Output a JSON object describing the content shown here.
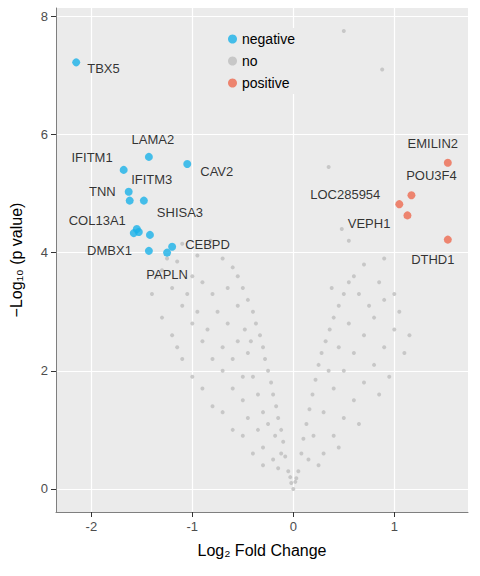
{
  "chart_data": {
    "type": "scatter",
    "xlabel": "Log₂ Fold Change",
    "ylabel": "−Log₁₀ (p value)",
    "xlim": [
      -2.35,
      1.73
    ],
    "ylim": [
      -0.39,
      8.14
    ],
    "xticks": [
      -2,
      -1,
      0,
      1
    ],
    "yticks": [
      0,
      2,
      4,
      6,
      8
    ],
    "grid": true,
    "legend": "top",
    "series": [
      {
        "name": "negative",
        "color": "#1AB2E8",
        "x": [
          -2.15,
          -1.43,
          -1.05,
          -1.68,
          -1.63,
          -1.62,
          -1.48,
          -1.55,
          -1.43,
          -1.2,
          -1.25,
          -1.53,
          -1.42,
          -1.58
        ],
        "y": [
          7.22,
          5.62,
          5.5,
          5.4,
          5.03,
          4.88,
          4.88,
          4.4,
          4.03,
          4.1,
          4.0,
          4.35,
          4.3,
          4.33
        ],
        "labels": [
          "TBX5",
          "LAMA2",
          "CAV2",
          "IFITM1",
          "TNN",
          "IFITM3",
          "SHISA3",
          "COL13A1",
          "DMBX1",
          "CEBPD",
          "PAPLN",
          null,
          null,
          null
        ]
      },
      {
        "name": "no",
        "color": "#BEBEBE",
        "x": [
          0,
          -0.02,
          0.02,
          -0.03,
          0.03,
          -0.05,
          -0.08,
          -0.1,
          -0.12,
          -0.15,
          -0.17,
          -0.2,
          -0.22,
          -0.25,
          -0.28,
          -0.3,
          -0.33,
          -0.37,
          -0.4,
          -0.45,
          -0.5,
          -0.55,
          -0.6,
          -0.7,
          -0.2,
          -0.3,
          -0.35,
          -0.45,
          -0.5,
          -0.6,
          -0.7,
          -0.8,
          -0.9,
          -1.0,
          -1.1,
          -1.2,
          -1.3,
          -1.25,
          -1.15,
          -1.0,
          -0.9,
          -0.8,
          -0.75,
          -0.65,
          -0.55,
          -0.45,
          -0.4,
          -0.35,
          -0.3,
          -0.25,
          -0.18,
          -0.12,
          -0.15,
          -0.4,
          -0.6,
          -0.8,
          -1.0,
          -1.15,
          -1.3,
          -1.4,
          -1.35,
          -1.05,
          -0.95,
          -0.85,
          -0.7,
          -0.6,
          -0.5,
          -1.2,
          -1.1,
          -0.9,
          -0.7,
          -0.5,
          -0.3,
          -0.82,
          -0.95,
          -1.1,
          -0.65,
          -0.55,
          -0.48,
          -0.42,
          0.05,
          0.08,
          0.1,
          0.13,
          0.16,
          0.19,
          0.22,
          0.25,
          0.28,
          0.32,
          0.36,
          0.4,
          0.45,
          0.5,
          0.55,
          0.3,
          0.4,
          0.5,
          0.6,
          0.7,
          0.8,
          0.9,
          1.0,
          1.05,
          1.0,
          0.9,
          0.8,
          0.7,
          0.6,
          0.5,
          0.4,
          0.3,
          0.2,
          0.15,
          0.25,
          0.45,
          0.65,
          0.85,
          0.95,
          1.1,
          1.15,
          0.75,
          0.65,
          0.6,
          0.7,
          0.55,
          0.45,
          0.35,
          0.85,
          0.9,
          0.55,
          0.35,
          0.5,
          0.88,
          0.48,
          0.38
        ],
        "y": [
          0,
          0.1,
          0.12,
          0.2,
          0.18,
          0.3,
          0.55,
          0.8,
          1.0,
          1.2,
          1.4,
          1.6,
          1.8,
          2.0,
          2.2,
          2.4,
          2.6,
          2.8,
          3.0,
          3.2,
          3.4,
          3.6,
          3.75,
          3.9,
          0.5,
          0.7,
          1.0,
          1.2,
          1.5,
          1.7,
          2.0,
          2.2,
          2.5,
          2.8,
          3.1,
          3.4,
          3.7,
          3.9,
          3.85,
          3.6,
          3.5,
          3.3,
          3.0,
          2.8,
          2.5,
          2.3,
          1.9,
          1.6,
          1.3,
          1.1,
          0.9,
          0.6,
          0.35,
          0.6,
          1.0,
          1.4,
          1.9,
          2.4,
          2.9,
          3.3,
          3.6,
          3.3,
          3.0,
          2.7,
          2.4,
          2.2,
          1.9,
          2.6,
          2.2,
          1.7,
          1.3,
          0.9,
          0.4,
          4.2,
          3.95,
          4.15,
          3.4,
          3.1,
          2.7,
          2.5,
          0.3,
          0.6,
          0.85,
          1.1,
          1.35,
          1.6,
          1.85,
          2.1,
          2.3,
          2.5,
          2.7,
          2.9,
          3.1,
          3.3,
          3.5,
          0.6,
          0.9,
          1.2,
          1.5,
          1.8,
          2.1,
          2.4,
          2.7,
          3.0,
          3.3,
          3.2,
          2.9,
          2.6,
          2.3,
          2.0,
          1.7,
          1.3,
          0.9,
          0.5,
          0.4,
          0.7,
          1.1,
          1.6,
          1.9,
          2.3,
          2.6,
          3.1,
          3.3,
          3.6,
          3.8,
          2.8,
          2.4,
          2.0,
          3.5,
          3.9,
          4.2,
          5.45,
          7.75,
          7.1,
          4.4,
          3.4
        ]
      },
      {
        "name": "positive",
        "color": "#EE6A50",
        "x": [
          1.53,
          1.17,
          1.05,
          1.13,
          1.53
        ],
        "y": [
          5.52,
          4.97,
          4.82,
          4.63,
          4.22
        ],
        "labels": [
          "EMILIN2",
          "POU3F4",
          "LOC285954",
          "VEPH1",
          "DTHD1"
        ]
      }
    ]
  }
}
